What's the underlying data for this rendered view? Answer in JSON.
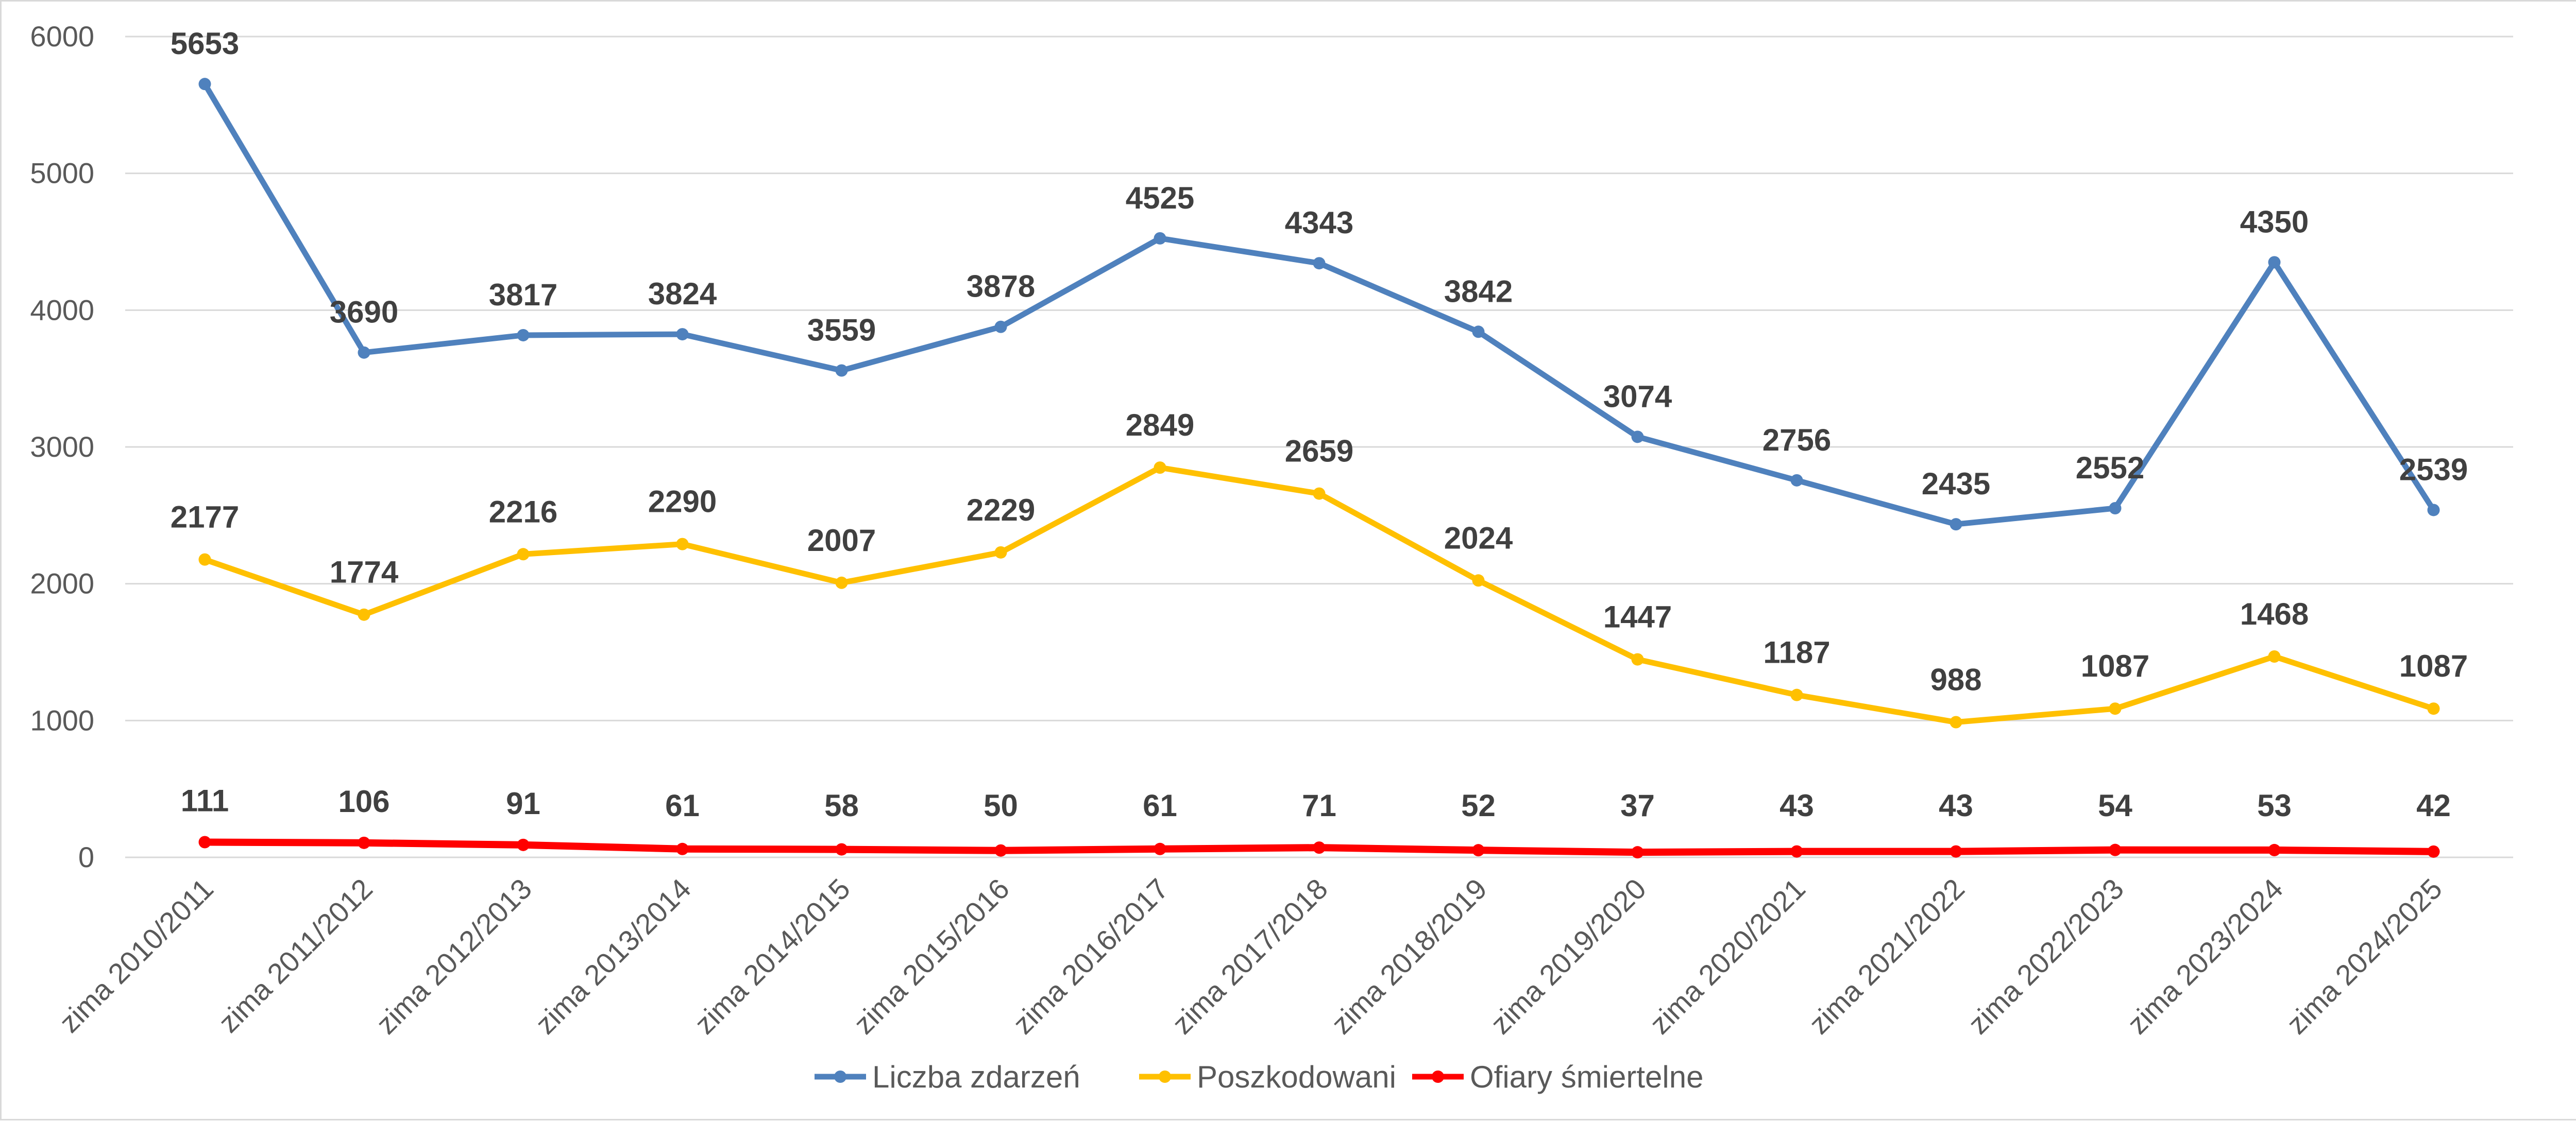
{
  "chart_data": {
    "type": "line",
    "title": "",
    "xlabel": "",
    "ylabel": "",
    "ylim": [
      0,
      6000
    ],
    "yticks": [
      0,
      1000,
      2000,
      3000,
      4000,
      5000,
      6000
    ],
    "grid": true,
    "legend_position": "bottom",
    "categories": [
      "zima 2010/2011",
      "zima 2011/2012",
      "zima 2012/2013",
      "zima 2013/2014",
      "zima 2014/2015",
      "zima 2015/2016",
      "zima 2016/2017",
      "zima 2017/2018",
      "zima 2018/2019",
      "zima 2019/2020",
      "zima 2020/2021",
      "zima 2021/2022",
      "zima 2022/2023",
      "zima 2023/2024",
      "zima 2024/2025"
    ],
    "series": [
      {
        "name": "Liczba zdarzeń",
        "color": "#4f81bd",
        "values": [
          5653,
          3690,
          3817,
          3824,
          3559,
          3878,
          4525,
          4343,
          3842,
          3074,
          2756,
          2435,
          2552,
          4350,
          2539
        ]
      },
      {
        "name": "Poszkodowani",
        "color": "#ffc000",
        "values": [
          2177,
          1774,
          2216,
          2290,
          2007,
          2229,
          2849,
          2659,
          2024,
          1447,
          1187,
          988,
          1087,
          1468,
          1087
        ]
      },
      {
        "name": "Ofiary śmiertelne",
        "color": "#ff0000",
        "values": [
          111,
          106,
          91,
          61,
          58,
          50,
          61,
          71,
          52,
          37,
          43,
          43,
          54,
          53,
          42
        ]
      }
    ]
  }
}
